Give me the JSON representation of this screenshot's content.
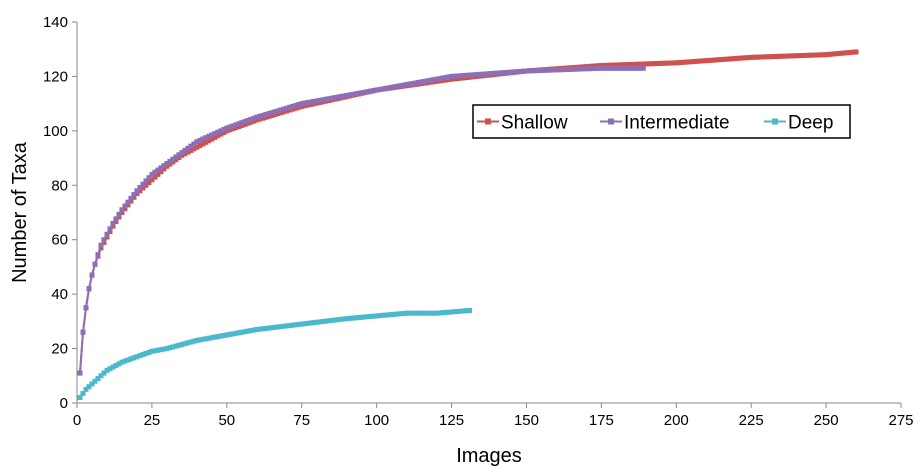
{
  "chart_data": {
    "type": "line",
    "title": "",
    "xlabel": "Images",
    "ylabel": "Number of Taxa",
    "xlim": [
      0,
      275
    ],
    "ylim": [
      0,
      140
    ],
    "x_ticks": [
      "0",
      "25",
      "50",
      "75",
      "100",
      "125",
      "150",
      "175",
      "200",
      "225",
      "250",
      "275"
    ],
    "y_ticks": [
      "0",
      "20",
      "40",
      "60",
      "80",
      "100",
      "120",
      "140"
    ],
    "grid": false,
    "legend_position": "right",
    "series": [
      {
        "name": "Shallow",
        "color": "#d0504d",
        "marker": "square",
        "points": [
          [
            1,
            11
          ],
          [
            2,
            26
          ],
          [
            3,
            35
          ],
          [
            4,
            42
          ],
          [
            5,
            47
          ],
          [
            6,
            51
          ],
          [
            8,
            57
          ],
          [
            10,
            61
          ],
          [
            12,
            65
          ],
          [
            15,
            70
          ],
          [
            20,
            77
          ],
          [
            25,
            82
          ],
          [
            30,
            87
          ],
          [
            35,
            91
          ],
          [
            40,
            94
          ],
          [
            50,
            100
          ],
          [
            60,
            104
          ],
          [
            75,
            109
          ],
          [
            100,
            115
          ],
          [
            125,
            119
          ],
          [
            150,
            122
          ],
          [
            175,
            124
          ],
          [
            200,
            125
          ],
          [
            225,
            127
          ],
          [
            250,
            128
          ],
          [
            260,
            129
          ]
        ]
      },
      {
        "name": "Intermediate",
        "color": "#8e6fb5",
        "marker": "square",
        "points": [
          [
            1,
            11
          ],
          [
            2,
            26
          ],
          [
            3,
            35
          ],
          [
            4,
            42
          ],
          [
            5,
            47
          ],
          [
            6,
            51
          ],
          [
            8,
            58
          ],
          [
            10,
            62
          ],
          [
            12,
            66
          ],
          [
            15,
            71
          ],
          [
            20,
            78
          ],
          [
            25,
            84
          ],
          [
            30,
            88
          ],
          [
            35,
            92
          ],
          [
            40,
            96
          ],
          [
            50,
            101
          ],
          [
            60,
            105
          ],
          [
            75,
            110
          ],
          [
            100,
            115
          ],
          [
            125,
            120
          ],
          [
            150,
            122
          ],
          [
            175,
            123
          ],
          [
            189,
            123
          ]
        ]
      },
      {
        "name": "Deep",
        "color": "#4bb8cc",
        "marker": "square",
        "points": [
          [
            1,
            2
          ],
          [
            3,
            5
          ],
          [
            5,
            7
          ],
          [
            8,
            10
          ],
          [
            10,
            12
          ],
          [
            15,
            15
          ],
          [
            20,
            17
          ],
          [
            25,
            19
          ],
          [
            30,
            20
          ],
          [
            40,
            23
          ],
          [
            50,
            25
          ],
          [
            60,
            27
          ],
          [
            75,
            29
          ],
          [
            90,
            31
          ],
          [
            100,
            32
          ],
          [
            110,
            33
          ],
          [
            120,
            33
          ],
          [
            131,
            34
          ]
        ]
      }
    ]
  }
}
